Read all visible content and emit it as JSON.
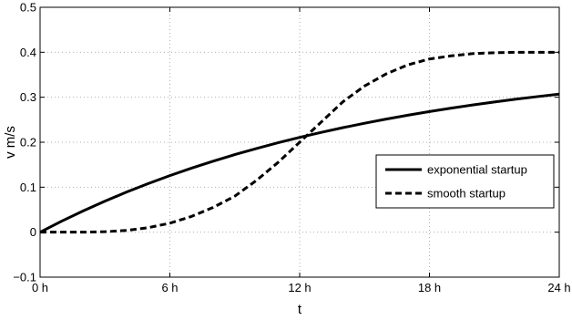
{
  "chart_data": {
    "type": "line",
    "xlabel": "t",
    "ylabel": "v m/s",
    "xlim": [
      0,
      24
    ],
    "ylim": [
      -0.1,
      0.5
    ],
    "grid": true,
    "legend_position": "right",
    "x_ticks": [
      {
        "value": 0,
        "label": "0 h"
      },
      {
        "value": 6,
        "label": "6 h"
      },
      {
        "value": 12,
        "label": "12 h"
      },
      {
        "value": 18,
        "label": "18 h"
      },
      {
        "value": 24,
        "label": "24 h"
      }
    ],
    "y_ticks": [
      {
        "value": -0.1,
        "label": "−0.1"
      },
      {
        "value": 0,
        "label": "0"
      },
      {
        "value": 0.1,
        "label": "0.1"
      },
      {
        "value": 0.2,
        "label": "0.2"
      },
      {
        "value": 0.3,
        "label": "0.3"
      },
      {
        "value": 0.4,
        "label": "0.4"
      },
      {
        "value": 0.5,
        "label": "0.5"
      }
    ],
    "series": [
      {
        "name": "exponential startup",
        "style": "solid",
        "color": "#000000",
        "x": [
          0,
          1,
          2,
          3,
          4,
          5,
          6,
          7,
          8,
          9,
          10,
          11,
          12,
          13,
          14,
          15,
          16,
          17,
          18,
          19,
          20,
          21,
          22,
          23,
          24
        ],
        "y": [
          0,
          0.0245,
          0.0475,
          0.069,
          0.0892,
          0.108,
          0.1257,
          0.1423,
          0.1579,
          0.1724,
          0.186,
          0.1988,
          0.2107,
          0.2219,
          0.2324,
          0.2422,
          0.2514,
          0.26,
          0.2681,
          0.2757,
          0.2828,
          0.2894,
          0.2957,
          0.3015,
          0.307
        ]
      },
      {
        "name": "smooth startup",
        "style": "dashed",
        "color": "#000000",
        "x": [
          0,
          1,
          2,
          3,
          4,
          5,
          6,
          7,
          8,
          9,
          10,
          11,
          12,
          13,
          14,
          15,
          16,
          17,
          18,
          19,
          20,
          21,
          22,
          23,
          24
        ],
        "y": [
          0,
          0,
          0,
          0.001,
          0.004,
          0.01,
          0.02,
          0.035,
          0.055,
          0.08,
          0.115,
          0.155,
          0.2,
          0.245,
          0.29,
          0.325,
          0.352,
          0.372,
          0.385,
          0.392,
          0.397,
          0.399,
          0.4,
          0.4,
          0.4
        ]
      }
    ]
  }
}
